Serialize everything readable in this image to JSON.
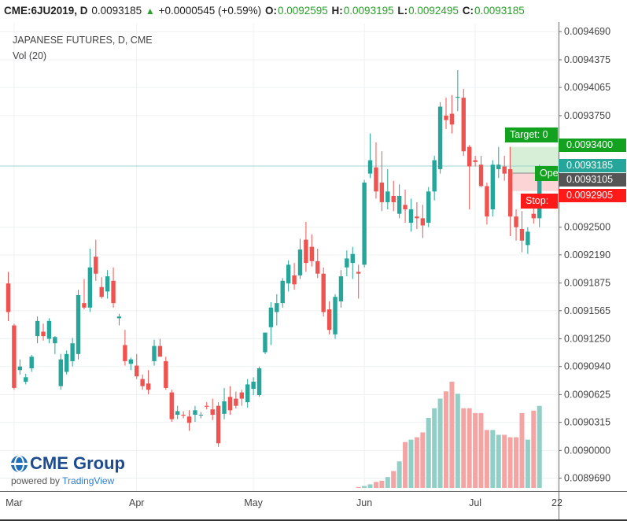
{
  "header": {
    "symbol": "CME:6JU2019, D",
    "last": "0.0093185",
    "change": "+0.0000545 (+0.59%)",
    "o_label": "O:",
    "o_value": "0.0092595",
    "h_label": "H:",
    "h_value": "0.0093195",
    "l_label": "L:",
    "l_value": "0.0092495",
    "c_label": "C:",
    "c_value": "0.0093185"
  },
  "legend": {
    "title": "JAPANESE FUTURES, D, CME",
    "volume_label": "Vol (20)"
  },
  "logo": {
    "brand": "CME Group",
    "powered": "powered by",
    "tv": "TradingView"
  },
  "tags": {
    "target": "Target: 0",
    "target_price": "0.0093400",
    "current_price": "0.0093185",
    "open_label": "Ope",
    "open_price": "0.0093105",
    "stop": "Stop:",
    "stop_price": "0.0092905"
  },
  "colors": {
    "up": "#26a69a",
    "down": "#ef5350",
    "up_vol": "#91cfc6",
    "down_vol": "#f3a4a3",
    "target_green": "#13a220",
    "stop_red": "#ff1a1a",
    "current_teal": "#26a69a",
    "open_gray": "#555555"
  },
  "chart_data": {
    "type": "candlestick",
    "title": "JAPANESE FUTURES, D, CME",
    "y_ticks": [
      "0.0094690",
      "0.0094375",
      "0.0094065",
      "0.0093750",
      "0.0093400",
      "0.0093185",
      "0.0093105",
      "0.0092905",
      "0.0092500",
      "0.0092190",
      "0.0091875",
      "0.0091565",
      "0.0091250",
      "0.0090940",
      "0.0090625",
      "0.0090315",
      "0.0090000",
      "0.0089690"
    ],
    "y_axis_values": [
      0.009469,
      0.0094375,
      0.0094065,
      0.009375,
      0.00925,
      0.009219,
      0.0091875,
      0.0091565,
      0.009125,
      0.009094,
      0.0090625,
      0.0090315,
      0.009,
      0.008969
    ],
    "ylim": [
      0.0089545,
      0.009478
    ],
    "x_ticks": [
      "Mar",
      "Apr",
      "May",
      "Jun",
      "Jul",
      "22"
    ],
    "x_tick_bar_index": [
      1,
      22,
      42,
      61,
      80,
      94
    ],
    "candles": [
      {
        "o": 0.009187,
        "h": 0.0092,
        "l": 0.009145,
        "c": 0.009155
      },
      {
        "o": 0.00914,
        "h": 0.009142,
        "l": 0.009068,
        "c": 0.00907
      },
      {
        "o": 0.00909,
        "h": 0.009102,
        "l": 0.009085,
        "c": 0.009094
      },
      {
        "o": 0.009077,
        "h": 0.009086,
        "l": 0.009074,
        "c": 0.009082
      },
      {
        "o": 0.009092,
        "h": 0.009107,
        "l": 0.009088,
        "c": 0.009105
      },
      {
        "o": 0.009128,
        "h": 0.00915,
        "l": 0.00912,
        "c": 0.009145
      },
      {
        "o": 0.009133,
        "h": 0.009142,
        "l": 0.009123,
        "c": 0.009128
      },
      {
        "o": 0.009125,
        "h": 0.009148,
        "l": 0.00912,
        "c": 0.009145
      },
      {
        "o": 0.00912,
        "h": 0.009128,
        "l": 0.009108,
        "c": 0.009127
      },
      {
        "o": 0.009072,
        "h": 0.009108,
        "l": 0.009068,
        "c": 0.009102
      },
      {
        "o": 0.009088,
        "h": 0.009112,
        "l": 0.009085,
        "c": 0.009108
      },
      {
        "o": 0.0091,
        "h": 0.009126,
        "l": 0.009094,
        "c": 0.00912
      },
      {
        "o": 0.009108,
        "h": 0.00918,
        "l": 0.009102,
        "c": 0.009174
      },
      {
        "o": 0.009165,
        "h": 0.009192,
        "l": 0.009158,
        "c": 0.00916
      },
      {
        "o": 0.00916,
        "h": 0.009226,
        "l": 0.009155,
        "c": 0.009205
      },
      {
        "o": 0.009217,
        "h": 0.009236,
        "l": 0.00919,
        "c": 0.009198
      },
      {
        "o": 0.009183,
        "h": 0.009194,
        "l": 0.00917,
        "c": 0.009172
      },
      {
        "o": 0.009178,
        "h": 0.009202,
        "l": 0.00917,
        "c": 0.009195
      },
      {
        "o": 0.00919,
        "h": 0.009205,
        "l": 0.00916,
        "c": 0.009165
      },
      {
        "o": 0.009148,
        "h": 0.009153,
        "l": 0.00914,
        "c": 0.00915
      },
      {
        "o": 0.009118,
        "h": 0.009135,
        "l": 0.009095,
        "c": 0.0091
      },
      {
        "o": 0.009097,
        "h": 0.009104,
        "l": 0.00909,
        "c": 0.009102
      },
      {
        "o": 0.009095,
        "h": 0.009108,
        "l": 0.00908,
        "c": 0.009083
      },
      {
        "o": 0.00908,
        "h": 0.009085,
        "l": 0.009068,
        "c": 0.009072
      },
      {
        "o": 0.009075,
        "h": 0.00909,
        "l": 0.009063,
        "c": 0.009068
      },
      {
        "o": 0.0091,
        "h": 0.009124,
        "l": 0.009095,
        "c": 0.009117
      },
      {
        "o": 0.009117,
        "h": 0.009125,
        "l": 0.00911,
        "c": 0.009105
      },
      {
        "o": 0.0091,
        "h": 0.009105,
        "l": 0.009068,
        "c": 0.00907
      },
      {
        "o": 0.009065,
        "h": 0.009068,
        "l": 0.009032,
        "c": 0.009035
      },
      {
        "o": 0.00904,
        "h": 0.00905,
        "l": 0.009035,
        "c": 0.009044
      },
      {
        "o": 0.00904,
        "h": 0.009044,
        "l": 0.009036,
        "c": 0.009039
      },
      {
        "o": 0.009038,
        "h": 0.009045,
        "l": 0.009022,
        "c": 0.009031
      },
      {
        "o": 0.00904,
        "h": 0.00905,
        "l": 0.009032,
        "c": 0.009045
      },
      {
        "o": 0.00904,
        "h": 0.009043,
        "l": 0.009036,
        "c": 0.00904
      },
      {
        "o": 0.00905,
        "h": 0.009054,
        "l": 0.009046,
        "c": 0.009049
      },
      {
        "o": 0.009046,
        "h": 0.009058,
        "l": 0.009034,
        "c": 0.00904
      },
      {
        "o": 0.00905,
        "h": 0.009054,
        "l": 0.009004,
        "c": 0.009008
      },
      {
        "o": 0.009041,
        "h": 0.00907,
        "l": 0.009035,
        "c": 0.009055
      },
      {
        "o": 0.00906,
        "h": 0.009072,
        "l": 0.00904,
        "c": 0.009045
      },
      {
        "o": 0.009058,
        "h": 0.009066,
        "l": 0.009047,
        "c": 0.00905
      },
      {
        "o": 0.009065,
        "h": 0.009068,
        "l": 0.00905,
        "c": 0.009058
      },
      {
        "o": 0.009054,
        "h": 0.00908,
        "l": 0.009048,
        "c": 0.009074
      },
      {
        "o": 0.009069,
        "h": 0.009082,
        "l": 0.009062,
        "c": 0.009077
      },
      {
        "o": 0.009062,
        "h": 0.009094,
        "l": 0.00906,
        "c": 0.009092
      },
      {
        "o": 0.00911,
        "h": 0.00913,
        "l": 0.009108,
        "c": 0.009132
      },
      {
        "o": 0.009138,
        "h": 0.009166,
        "l": 0.009118,
        "c": 0.00916
      },
      {
        "o": 0.009155,
        "h": 0.009175,
        "l": 0.00914,
        "c": 0.009165
      },
      {
        "o": 0.009165,
        "h": 0.009193,
        "l": 0.00916,
        "c": 0.00919
      },
      {
        "o": 0.009187,
        "h": 0.009213,
        "l": 0.009178,
        "c": 0.009208
      },
      {
        "o": 0.009196,
        "h": 0.00921,
        "l": 0.00918,
        "c": 0.009186
      },
      {
        "o": 0.009196,
        "h": 0.009237,
        "l": 0.009192,
        "c": 0.009225
      },
      {
        "o": 0.009236,
        "h": 0.009256,
        "l": 0.0092,
        "c": 0.00921
      },
      {
        "o": 0.009228,
        "h": 0.009242,
        "l": 0.009206,
        "c": 0.009212
      },
      {
        "o": 0.009212,
        "h": 0.009226,
        "l": 0.009193,
        "c": 0.009198
      },
      {
        "o": 0.009198,
        "h": 0.009205,
        "l": 0.00915,
        "c": 0.009155
      },
      {
        "o": 0.009158,
        "h": 0.009167,
        "l": 0.00913,
        "c": 0.009135
      },
      {
        "o": 0.00913,
        "h": 0.009175,
        "l": 0.009125,
        "c": 0.009172
      },
      {
        "o": 0.009167,
        "h": 0.009202,
        "l": 0.00916,
        "c": 0.009195
      },
      {
        "o": 0.009205,
        "h": 0.009224,
        "l": 0.009195,
        "c": 0.009215
      },
      {
        "o": 0.00921,
        "h": 0.009228,
        "l": 0.009192,
        "c": 0.00922
      },
      {
        "o": 0.0092,
        "h": 0.009208,
        "l": 0.00917,
        "c": 0.009198
      },
      {
        "o": 0.009208,
        "h": 0.009303,
        "l": 0.009205,
        "c": 0.0093
      },
      {
        "o": 0.00931,
        "h": 0.009355,
        "l": 0.009305,
        "c": 0.009325
      },
      {
        "o": 0.009317,
        "h": 0.009345,
        "l": 0.009282,
        "c": 0.00929
      },
      {
        "o": 0.0093,
        "h": 0.009335,
        "l": 0.009268,
        "c": 0.009278
      },
      {
        "o": 0.009278,
        "h": 0.009315,
        "l": 0.00927,
        "c": 0.00929
      },
      {
        "o": 0.009285,
        "h": 0.009302,
        "l": 0.009268,
        "c": 0.009278
      },
      {
        "o": 0.009265,
        "h": 0.009298,
        "l": 0.00926,
        "c": 0.009285
      },
      {
        "o": 0.009275,
        "h": 0.009292,
        "l": 0.009255,
        "c": 0.00927
      },
      {
        "o": 0.009255,
        "h": 0.009282,
        "l": 0.009245,
        "c": 0.00927
      },
      {
        "o": 0.009262,
        "h": 0.009278,
        "l": 0.009248,
        "c": 0.00926
      },
      {
        "o": 0.00926,
        "h": 0.009275,
        "l": 0.009238,
        "c": 0.009252
      },
      {
        "o": 0.009255,
        "h": 0.009295,
        "l": 0.00925,
        "c": 0.00929
      },
      {
        "o": 0.00929,
        "h": 0.00933,
        "l": 0.00928,
        "c": 0.009325
      },
      {
        "o": 0.009315,
        "h": 0.00939,
        "l": 0.00931,
        "c": 0.009385
      },
      {
        "o": 0.009375,
        "h": 0.009395,
        "l": 0.00936,
        "c": 0.00937
      },
      {
        "o": 0.009377,
        "h": 0.009398,
        "l": 0.009355,
        "c": 0.009365
      },
      {
        "o": 0.009395,
        "h": 0.009426,
        "l": 0.00938,
        "c": 0.009396
      },
      {
        "o": 0.009395,
        "h": 0.009405,
        "l": 0.00933,
        "c": 0.009335
      },
      {
        "o": 0.00934,
        "h": 0.009342,
        "l": 0.00927,
        "c": 0.009318
      },
      {
        "o": 0.009325,
        "h": 0.00933,
        "l": 0.009318,
        "c": 0.009323
      },
      {
        "o": 0.00932,
        "h": 0.00933,
        "l": 0.009295,
        "c": 0.009296
      },
      {
        "o": 0.009296,
        "h": 0.0093,
        "l": 0.009253,
        "c": 0.009262
      },
      {
        "o": 0.00927,
        "h": 0.009325,
        "l": 0.009262,
        "c": 0.00932
      },
      {
        "o": 0.009315,
        "h": 0.00934,
        "l": 0.009305,
        "c": 0.00932
      },
      {
        "o": 0.009318,
        "h": 0.00933,
        "l": 0.009302,
        "c": 0.00931
      },
      {
        "o": 0.009315,
        "h": 0.00934,
        "l": 0.00924,
        "c": 0.009262
      },
      {
        "o": 0.009262,
        "h": 0.00927,
        "l": 0.009235,
        "c": 0.00925
      },
      {
        "o": 0.009248,
        "h": 0.009268,
        "l": 0.009222,
        "c": 0.009235
      },
      {
        "o": 0.00923,
        "h": 0.00925,
        "l": 0.00922,
        "c": 0.009245
      },
      {
        "o": 0.009265,
        "h": 0.009275,
        "l": 0.009254,
        "c": 0.00926
      },
      {
        "o": 0.00926,
        "h": 0.00932,
        "l": 0.00925,
        "c": 0.009318
      }
    ],
    "volume": [
      0,
      0,
      0,
      0,
      0,
      0,
      0,
      0,
      0,
      0,
      0,
      0,
      0,
      0,
      0,
      0,
      0,
      0,
      0,
      0,
      0,
      0,
      0,
      0,
      0,
      0,
      0,
      0,
      0,
      0,
      0,
      0,
      0,
      0,
      0,
      0,
      0,
      0,
      0,
      0,
      0,
      0,
      0,
      0,
      0,
      0,
      0,
      0,
      0,
      0,
      0,
      0,
      0,
      0,
      0,
      0,
      0,
      0,
      0,
      0,
      0.4,
      0.8,
      1.5,
      2.5,
      3.0,
      4.5,
      7,
      11,
      19,
      20,
      21,
      23,
      29,
      33,
      37,
      40,
      44,
      39,
      33,
      33,
      31,
      31,
      24,
      24,
      22,
      22,
      21,
      21,
      31,
      20,
      32,
      34
    ],
    "current_line_price": 0.0093185
  }
}
